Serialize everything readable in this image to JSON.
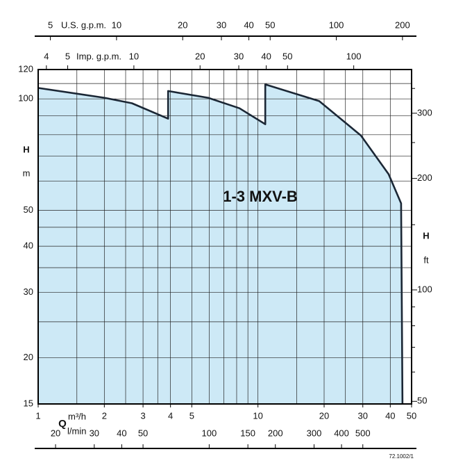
{
  "chart_data": {
    "type": "area",
    "title": "1-3 MXV-B",
    "x": [
      1,
      2,
      2.67,
      3.9,
      3.9,
      5.93,
      8.24,
      10.8,
      10.8,
      19,
      29.4,
      39.3,
      44.8
    ],
    "values": [
      107,
      100.7,
      97.3,
      88.4,
      105,
      100.7,
      94.3,
      85.4,
      109.4,
      98.6,
      79.6,
      62.6,
      52.2
    ],
    "color": "#cde9f6",
    "line_color": "#1b2735",
    "log_x": true,
    "log_y": true,
    "xlim": [
      1,
      50
    ],
    "xticks": [
      1,
      2,
      3,
      4,
      5,
      10,
      20,
      30,
      40,
      50
    ],
    "xgrid": [
      1,
      1.5,
      2,
      2.5,
      3,
      3.5,
      4,
      5,
      6,
      7,
      8,
      9,
      10,
      15,
      20,
      25,
      30,
      40,
      50
    ],
    "ylim": [
      15,
      120
    ],
    "yticks": [
      15,
      20,
      30,
      40,
      50,
      100,
      120
    ],
    "ygrid": [
      15,
      20,
      25,
      30,
      35,
      40,
      45,
      50,
      60,
      70,
      80,
      90,
      100,
      110,
      120
    ],
    "x_label": "m³/h",
    "q_label": "Q",
    "y_label": "H",
    "y_unit": "m",
    "y2_label": "H",
    "y2_unit": "ft",
    "y2lim": [
      49.2,
      393.7
    ],
    "y2ticks": [
      50,
      100,
      200,
      300
    ],
    "y2minor": [
      60,
      70,
      80,
      90,
      150,
      250,
      350
    ],
    "x2_label": "l/min",
    "x2lim": [
      16.67,
      833.3
    ],
    "x2ticks": [
      20,
      30,
      40,
      50,
      100,
      150,
      200,
      300,
      400,
      500
    ],
    "x3_label": "U.S. g.p.m.",
    "x3lim": [
      4.4,
      220
    ],
    "x3ticks": [
      5,
      10,
      20,
      30,
      40,
      50,
      100,
      200
    ],
    "x4_label": "Imp. g.p.m.",
    "x4lim": [
      3.67,
      183.3
    ],
    "x4ticks": [
      4,
      5,
      10,
      20,
      30,
      40,
      50,
      100
    ],
    "code": "72.1002/1"
  }
}
